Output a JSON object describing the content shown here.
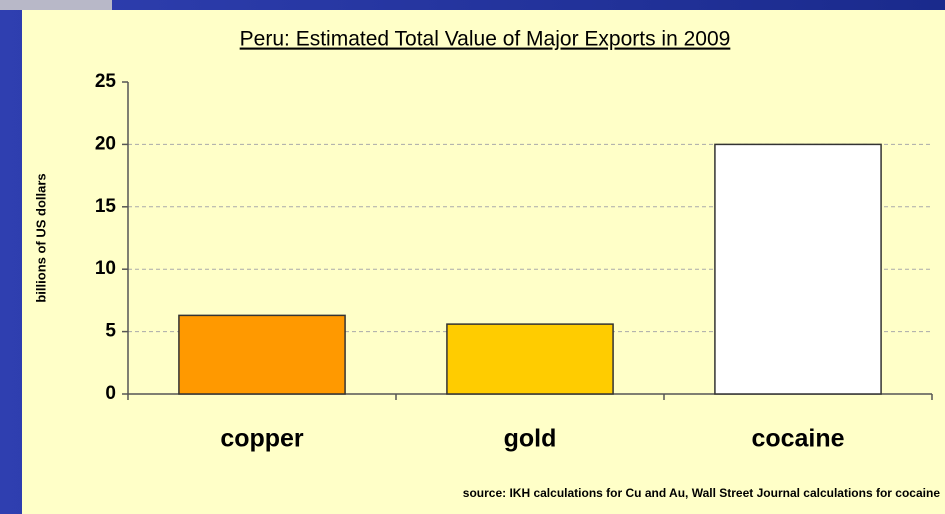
{
  "chart_data": {
    "type": "bar",
    "title": "Peru: Estimated Total Value of Major Exports in 2009",
    "y_label": "billions of US dollars",
    "source": "source: IKH calculations for Cu and Au, Wall Street Journal calculations for cocaine",
    "categories": [
      "copper",
      "gold",
      "cocaine"
    ],
    "values": [
      6.3,
      5.6,
      20
    ],
    "colors": [
      "#ff9900",
      "#ffcc00",
      "#ffffff"
    ],
    "ylim": [
      0,
      25
    ],
    "yticks": [
      0,
      5,
      10,
      15,
      20,
      25
    ],
    "grid": true
  }
}
